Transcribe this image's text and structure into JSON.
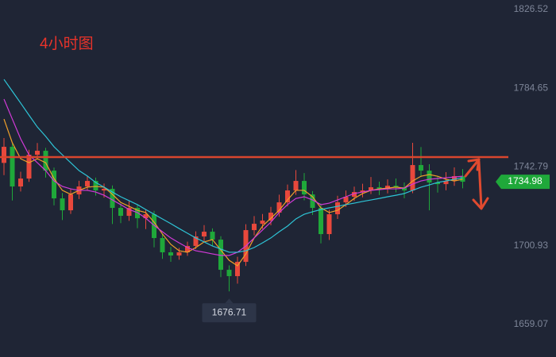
{
  "chart_data": {
    "type": "candlestick",
    "title": "4小时图",
    "up_color": "#e8483c",
    "down_color": "#1fa83a",
    "open": [
      1745.0,
      1753.55,
      1732.46,
      1736.67,
      1749.33,
      1751.44,
      1740.89,
      1726.13,
      1719.8,
      1728.24,
      1732.46,
      1735.41,
      1730.35,
      1731.19,
      1721.07,
      1716.85,
      1721.07,
      1715.58,
      1717.69,
      1705.04,
      1697.45,
      1695.76,
      1697.45,
      1700.82,
      1705.88,
      1708.41,
      1704.2,
      1688.17,
      1684.79,
      1692.39,
      1709.26,
      1712.63,
      1714.32,
      1718.54,
      1724.02,
      1730.35,
      1735.41,
      1728.24,
      1721.07,
      1707.15,
      1717.69,
      1724.02,
      1726.97,
      1729.5,
      1730.35,
      1732.04,
      1731.19,
      1732.88,
      1732.04,
      1730.35,
      1743.85,
      1740.89,
      1734.57,
      1733.72,
      1735.41,
      1737.94
    ],
    "high": [
      1758.2,
      1755.1,
      1740.3,
      1752.0,
      1755.6,
      1753.0,
      1742.5,
      1729.0,
      1731.0,
      1735.5,
      1737.9,
      1737.2,
      1734.0,
      1733.0,
      1723.4,
      1724.9,
      1722.6,
      1720.3,
      1719.5,
      1707.2,
      1700.3,
      1699.8,
      1703.1,
      1708.6,
      1711.9,
      1710.2,
      1706.0,
      1690.5,
      1695.1,
      1712.4,
      1716.7,
      1717.8,
      1721.6,
      1728.1,
      1733.5,
      1741.2,
      1739.6,
      1730.0,
      1723.4,
      1720.1,
      1727.5,
      1730.3,
      1732.4,
      1733.9,
      1737.5,
      1735.0,
      1736.2,
      1736.7,
      1734.6,
      1755.7,
      1753.4,
      1744.3,
      1738.0,
      1740.1,
      1742.6,
      1741.7
    ],
    "low": [
      1738.5,
      1725.0,
      1729.8,
      1734.9,
      1746.8,
      1737.2,
      1722.4,
      1714.6,
      1717.9,
      1725.8,
      1730.1,
      1727.6,
      1726.5,
      1712.5,
      1713.0,
      1714.2,
      1710.3,
      1709.8,
      1700.1,
      1694.0,
      1692.4,
      1693.5,
      1695.6,
      1699.2,
      1703.4,
      1700.9,
      1684.3,
      1676.71,
      1680.8,
      1690.2,
      1706.5,
      1709.9,
      1711.8,
      1716.4,
      1721.9,
      1728.0,
      1725.1,
      1717.3,
      1702.2,
      1704.0,
      1715.2,
      1721.6,
      1724.8,
      1726.7,
      1728.4,
      1727.9,
      1728.8,
      1729.3,
      1726.2,
      1728.9,
      1737.5,
      1719.8,
      1729.2,
      1730.4,
      1732.8,
      1731.5
    ],
    "close": [
      1753.55,
      1732.46,
      1736.67,
      1749.33,
      1751.44,
      1740.89,
      1726.13,
      1719.8,
      1728.24,
      1732.46,
      1735.41,
      1730.35,
      1731.19,
      1721.07,
      1716.85,
      1721.07,
      1715.58,
      1717.69,
      1705.04,
      1697.45,
      1695.76,
      1697.45,
      1700.82,
      1705.88,
      1708.41,
      1704.2,
      1688.17,
      1684.79,
      1692.39,
      1709.26,
      1712.63,
      1714.32,
      1718.54,
      1724.02,
      1730.35,
      1735.41,
      1728.24,
      1721.07,
      1707.15,
      1717.69,
      1724.02,
      1726.97,
      1729.5,
      1730.35,
      1732.04,
      1731.19,
      1732.88,
      1732.04,
      1730.35,
      1743.85,
      1740.89,
      1734.57,
      1733.72,
      1735.41,
      1737.94,
      1734.98
    ],
    "lines": [
      {
        "color": "#f0a02a",
        "values": [
          1768.3,
          1755.7,
          1747.2,
          1745.1,
          1747.2,
          1745.1,
          1736.7,
          1730.4,
          1728.3,
          1730.4,
          1732.1,
          1732.5,
          1732.1,
          1728.3,
          1724.0,
          1721.9,
          1719.8,
          1718.6,
          1713.5,
          1707.2,
          1701.7,
          1698.3,
          1697.5,
          1700.0,
          1703.0,
          1704.2,
          1698.7,
          1693.2,
          1690.3,
          1696.6,
          1705.1,
          1711.4,
          1715.6,
          1719.8,
          1725.3,
          1730.4,
          1730.4,
          1727.0,
          1721.1,
          1718.6,
          1719.8,
          1722.8,
          1726.1,
          1728.7,
          1730.4,
          1731.2,
          1731.6,
          1732.1,
          1731.6,
          1735.4,
          1737.9,
          1738.8,
          1737.9,
          1736.3,
          1735.4,
          1736.3
        ]
      },
      {
        "color": "#d23ad8",
        "values": [
          1778.9,
          1768.3,
          1757.8,
          1749.3,
          1745.1,
          1740.9,
          1735.4,
          1732.5,
          1731.2,
          1730.4,
          1730.4,
          1729.5,
          1727.8,
          1725.3,
          1722.8,
          1720.2,
          1718.6,
          1715.6,
          1711.8,
          1708.4,
          1705.1,
          1702.5,
          1700.0,
          1698.3,
          1697.5,
          1696.6,
          1695.8,
          1695.8,
          1697.5,
          1700.8,
          1705.1,
          1709.3,
          1713.5,
          1718.6,
          1722.8,
          1726.1,
          1727.0,
          1725.3,
          1722.8,
          1723.6,
          1725.3,
          1727.0,
          1728.7,
          1729.5,
          1730.4,
          1730.8,
          1731.2,
          1731.2,
          1731.6,
          1733.7,
          1735.4,
          1736.3,
          1736.7,
          1737.1,
          1737.5,
          1737.9
        ]
      },
      {
        "color": "#2ec4d6",
        "values": [
          1789.4,
          1783.1,
          1776.8,
          1770.4,
          1764.1,
          1759.1,
          1753.6,
          1749.3,
          1745.1,
          1740.9,
          1738.0,
          1734.6,
          1732.1,
          1729.5,
          1727.0,
          1724.9,
          1722.8,
          1720.2,
          1717.7,
          1715.2,
          1712.7,
          1710.1,
          1707.6,
          1705.1,
          1703.0,
          1700.8,
          1699.2,
          1697.5,
          1697.5,
          1698.3,
          1700.0,
          1702.5,
          1705.1,
          1708.4,
          1711.4,
          1715.2,
          1717.7,
          1719.0,
          1720.2,
          1721.1,
          1721.9,
          1722.8,
          1723.6,
          1724.5,
          1725.3,
          1726.1,
          1727.0,
          1727.8,
          1728.7,
          1730.4,
          1732.1,
          1733.3,
          1734.6,
          1735.4,
          1736.3,
          1737.1
        ]
      }
    ],
    "hline": 1748.07,
    "hline_color": "#d9462e",
    "ylim": [
      1641.8,
      1831.6
    ],
    "yticks": [
      1659.07,
      1700.93,
      1742.79,
      1784.65,
      1826.52
    ],
    "grid": false
  }
}
